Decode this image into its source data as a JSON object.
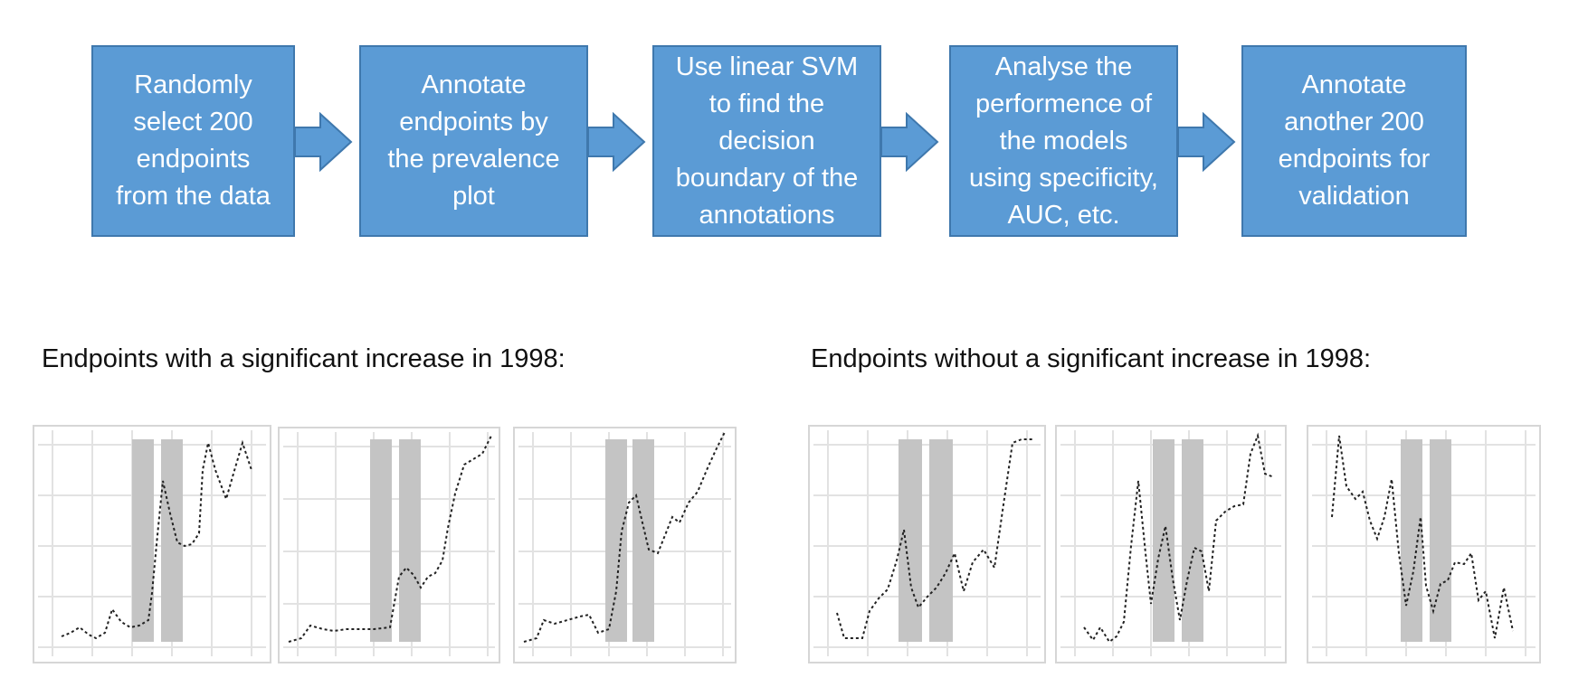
{
  "pipeline": {
    "steps": [
      "Randomly\nselect 200\nendpoints\nfrom the data",
      "Annotate\nendpoints by\nthe prevalence\nplot",
      "Use linear SVM\nto find the\ndecision\nboundary of the\nannotations",
      "Analyse the\nperformence of\nthe models\nusing specificity,\nAUC, etc.",
      "Annotate\nanother 200\nendpoints for\nvalidation"
    ]
  },
  "sections": {
    "with_increase_label": "Endpoints with a significant increase in 1998:",
    "without_increase_label": "Endpoints without a significant increase in 1998:"
  },
  "colors": {
    "box_fill": "#5b9bd5",
    "box_border": "#3f78ad",
    "highlight_band": "#c4c4c4",
    "trace": "#222222"
  },
  "thumbnail_icons": [
    "prevalence-plot-thumbnail"
  ]
}
